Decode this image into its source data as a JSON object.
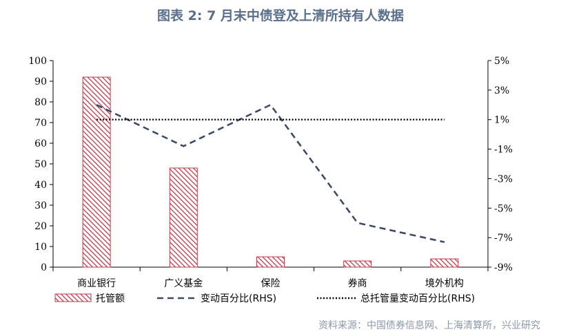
{
  "title": "图表 2:  7 月末中债登及上清所持有人数据",
  "source": "资料来源：中国债券信息网、上海清算所，兴业研究",
  "chart_data": {
    "type": "bar",
    "categories": [
      "商业银行",
      "广义基金",
      "保险",
      "券商",
      "境外机构"
    ],
    "series": [
      {
        "name": "托管额",
        "type": "bar",
        "axis": "left",
        "values": [
          92,
          48,
          5,
          3,
          4
        ]
      },
      {
        "name": "变动百分比(RHS)",
        "type": "line",
        "style": "dashed",
        "axis": "right",
        "values": [
          2.0,
          -0.8,
          2.0,
          -6.0,
          -7.3
        ]
      },
      {
        "name": "总托管量变动百分比(RHS)",
        "type": "line",
        "style": "dotted",
        "axis": "right",
        "values": [
          1.0,
          1.0,
          1.0,
          1.0,
          1.0
        ]
      }
    ],
    "ylim": [
      0,
      100
    ],
    "yticks": [
      "0",
      "10",
      "20",
      "30",
      "40",
      "50",
      "60",
      "70",
      "80",
      "90",
      "100"
    ],
    "y2lim": [
      -9,
      5
    ],
    "y2ticks": [
      "-9%",
      "-7%",
      "-5%",
      "-3%",
      "-1%",
      "1%",
      "3%",
      "5%"
    ],
    "grid": false,
    "legend": "bottom",
    "colors": {
      "bar": "#c0394b",
      "line": "#3d4a66",
      "title": "#5a6f8c",
      "source": "#8a98ad"
    }
  }
}
